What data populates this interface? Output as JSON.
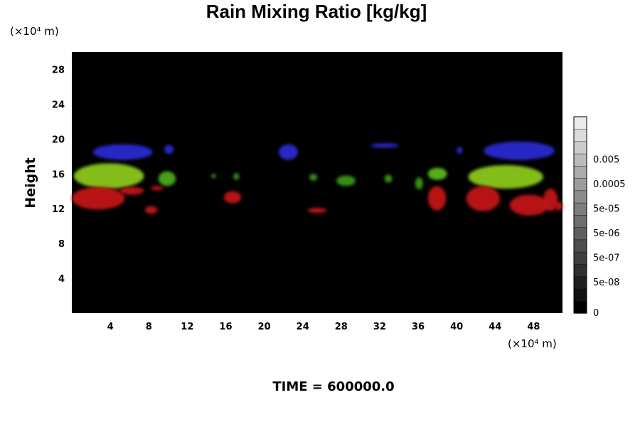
{
  "chart_data": {
    "type": "heatmap",
    "title": "Rain Mixing Ratio [kg/kg]",
    "ylabel": "Height",
    "xlabel": "",
    "x_unit": "(×10⁴ m)",
    "y_unit": "(×10⁴ m)",
    "xlim": [
      0,
      51
    ],
    "ylim": [
      0,
      30
    ],
    "x_ticks": [
      4,
      8,
      12,
      16,
      20,
      24,
      28,
      32,
      36,
      40,
      44,
      48
    ],
    "y_ticks": [
      4,
      8,
      12,
      16,
      20,
      24,
      28
    ],
    "background_color": "#000000",
    "colorbar": {
      "labels": [
        "0",
        "5e-08",
        "5e-07",
        "5e-06",
        "5e-05",
        "0.0005",
        "0.005"
      ],
      "levels": 16
    },
    "features": [
      {
        "band": "blue",
        "color": "#2a2ad0",
        "x": [
          2.2,
          8.4
        ],
        "y": [
          17.6,
          19.4
        ]
      },
      {
        "band": "blue",
        "color": "#2a2ad0",
        "x": [
          9.6,
          10.6
        ],
        "y": [
          18.3,
          19.3
        ]
      },
      {
        "band": "blue",
        "color": "#2a2ad0",
        "x": [
          21.5,
          23.5
        ],
        "y": [
          17.6,
          19.4
        ]
      },
      {
        "band": "blue",
        "color": "#2a2ad0",
        "x": [
          31.0,
          34.0
        ],
        "y": [
          19.0,
          19.5
        ]
      },
      {
        "band": "blue",
        "color": "#2a2ad0",
        "x": [
          40.0,
          40.6
        ],
        "y": [
          18.3,
          19.1
        ]
      },
      {
        "band": "blue",
        "color": "#2a2ad0",
        "x": [
          42.8,
          50.2
        ],
        "y": [
          17.6,
          19.7
        ]
      },
      {
        "band": "green",
        "color": "#8ac81a",
        "x": [
          0.2,
          7.5
        ],
        "y": [
          14.3,
          17.2
        ]
      },
      {
        "band": "green",
        "color": "#4ea81a",
        "x": [
          9.0,
          10.8
        ],
        "y": [
          14.6,
          16.3
        ]
      },
      {
        "band": "green",
        "color": "#3a9418",
        "x": [
          14.5,
          15.0
        ],
        "y": [
          15.5,
          16.0
        ]
      },
      {
        "band": "green",
        "color": "#3a9418",
        "x": [
          16.8,
          17.4
        ],
        "y": [
          15.3,
          16.1
        ]
      },
      {
        "band": "green",
        "color": "#3a9418",
        "x": [
          24.7,
          25.5
        ],
        "y": [
          15.2,
          16.0
        ]
      },
      {
        "band": "green",
        "color": "#3a9418",
        "x": [
          27.5,
          29.5
        ],
        "y": [
          14.6,
          15.8
        ]
      },
      {
        "band": "green",
        "color": "#3a9418",
        "x": [
          32.5,
          33.3
        ],
        "y": [
          15.0,
          15.9
        ]
      },
      {
        "band": "green",
        "color": "#3a9418",
        "x": [
          35.7,
          36.5
        ],
        "y": [
          14.2,
          15.6
        ]
      },
      {
        "band": "green",
        "color": "#5ab81a",
        "x": [
          37.0,
          39.0
        ],
        "y": [
          15.3,
          16.7
        ]
      },
      {
        "band": "green",
        "color": "#8ac81a",
        "x": [
          41.2,
          49.0
        ],
        "y": [
          14.3,
          17.0
        ]
      },
      {
        "band": "red",
        "color": "#c01818",
        "x": [
          0.0,
          5.5
        ],
        "y": [
          11.9,
          14.5
        ]
      },
      {
        "band": "red",
        "color": "#c01818",
        "x": [
          5.0,
          7.5
        ],
        "y": [
          13.6,
          14.5
        ]
      },
      {
        "band": "red",
        "color": "#c01818",
        "x": [
          2.2,
          2.7
        ],
        "y": [
          12.1,
          12.7
        ]
      },
      {
        "band": "red",
        "color": "#c01818",
        "x": [
          8.2,
          9.5
        ],
        "y": [
          14.1,
          14.6
        ]
      },
      {
        "band": "red",
        "color": "#c01818",
        "x": [
          7.6,
          8.9
        ],
        "y": [
          11.4,
          12.3
        ]
      },
      {
        "band": "red",
        "color": "#c01818",
        "x": [
          15.8,
          17.6
        ],
        "y": [
          12.6,
          14.0
        ]
      },
      {
        "band": "red",
        "color": "#c01818",
        "x": [
          24.5,
          26.5
        ],
        "y": [
          11.5,
          12.1
        ]
      },
      {
        "band": "red",
        "color": "#c01818",
        "x": [
          37.0,
          38.9
        ],
        "y": [
          11.8,
          14.6
        ]
      },
      {
        "band": "red",
        "color": "#c01818",
        "x": [
          41.0,
          44.5
        ],
        "y": [
          11.7,
          14.6
        ]
      },
      {
        "band": "red",
        "color": "#c01818",
        "x": [
          45.5,
          49.6
        ],
        "y": [
          11.2,
          13.6
        ]
      },
      {
        "band": "red",
        "color": "#c01818",
        "x": [
          49.0,
          50.5
        ],
        "y": [
          11.7,
          14.3
        ]
      },
      {
        "band": "red",
        "color": "#c01818",
        "x": [
          50.2,
          51.0
        ],
        "y": [
          11.8,
          12.8
        ]
      }
    ]
  },
  "footer": {
    "time_label": "TIME = 600000.0"
  }
}
